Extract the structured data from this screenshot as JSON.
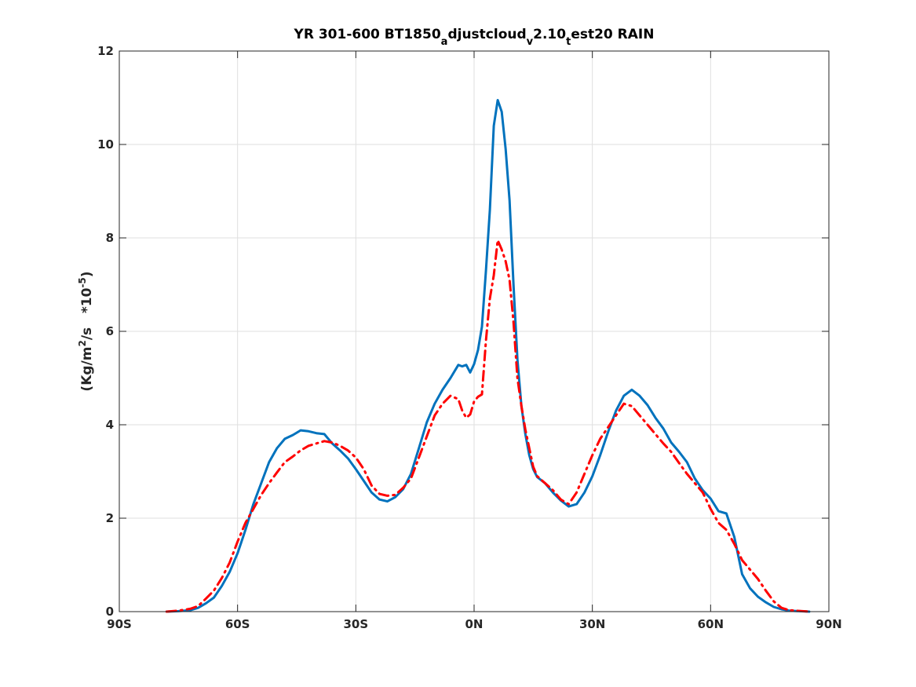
{
  "chart_data": {
    "type": "line",
    "title": {
      "parts": [
        {
          "text": "YR 301-600 BT1850",
          "sub": false
        },
        {
          "text": "a",
          "sub": true
        },
        {
          "text": "djustcloud",
          "sub": false
        },
        {
          "text": "v",
          "sub": true
        },
        {
          "text": "2.10",
          "sub": false
        },
        {
          "text": "t",
          "sub": true
        },
        {
          "text": "est20 RAIN",
          "sub": false
        }
      ]
    },
    "ylabel": {
      "pre": "(Kg/m",
      "sup1": "2",
      "mid": "/s   *10",
      "sup2": "-5",
      "post": ")"
    },
    "xlim": [
      -90,
      90
    ],
    "ylim": [
      0,
      12
    ],
    "xticks": [
      -90,
      -60,
      -30,
      0,
      30,
      60,
      90
    ],
    "xtick_labels": [
      "90S",
      "60S",
      "30S",
      "0N",
      "30N",
      "60N",
      "90N"
    ],
    "yticks": [
      0,
      2,
      4,
      6,
      8,
      10,
      12
    ],
    "ytick_labels": [
      "0",
      "2",
      "4",
      "6",
      "8",
      "10",
      "12"
    ],
    "grid": true,
    "legend": "none",
    "series": [
      {
        "color": "#0072BD",
        "style": "solid",
        "points": [
          [
            -78,
            0.0
          ],
          [
            -75,
            0.01
          ],
          [
            -72,
            0.03
          ],
          [
            -70,
            0.08
          ],
          [
            -68,
            0.18
          ],
          [
            -66,
            0.3
          ],
          [
            -64,
            0.55
          ],
          [
            -62,
            0.85
          ],
          [
            -60,
            1.25
          ],
          [
            -58,
            1.75
          ],
          [
            -56,
            2.3
          ],
          [
            -54,
            2.75
          ],
          [
            -52,
            3.2
          ],
          [
            -50,
            3.5
          ],
          [
            -48,
            3.7
          ],
          [
            -46,
            3.78
          ],
          [
            -44,
            3.88
          ],
          [
            -42,
            3.86
          ],
          [
            -40,
            3.82
          ],
          [
            -38,
            3.8
          ],
          [
            -36,
            3.6
          ],
          [
            -34,
            3.45
          ],
          [
            -32,
            3.28
          ],
          [
            -30,
            3.05
          ],
          [
            -28,
            2.8
          ],
          [
            -26,
            2.55
          ],
          [
            -24,
            2.4
          ],
          [
            -22,
            2.36
          ],
          [
            -20,
            2.45
          ],
          [
            -18,
            2.62
          ],
          [
            -16,
            2.95
          ],
          [
            -14,
            3.5
          ],
          [
            -12,
            4.05
          ],
          [
            -10,
            4.45
          ],
          [
            -8,
            4.75
          ],
          [
            -6,
            5.0
          ],
          [
            -4,
            5.28
          ],
          [
            -3,
            5.25
          ],
          [
            -2,
            5.28
          ],
          [
            -1,
            5.12
          ],
          [
            0,
            5.3
          ],
          [
            1,
            5.6
          ],
          [
            2,
            6.1
          ],
          [
            3,
            7.3
          ],
          [
            4,
            8.6
          ],
          [
            5,
            10.4
          ],
          [
            6,
            10.95
          ],
          [
            7,
            10.7
          ],
          [
            8,
            9.9
          ],
          [
            9,
            8.8
          ],
          [
            10,
            7.0
          ],
          [
            11,
            5.4
          ],
          [
            12,
            4.4
          ],
          [
            13,
            3.8
          ],
          [
            14,
            3.35
          ],
          [
            15,
            3.05
          ],
          [
            16,
            2.88
          ],
          [
            18,
            2.75
          ],
          [
            20,
            2.55
          ],
          [
            22,
            2.38
          ],
          [
            24,
            2.25
          ],
          [
            26,
            2.3
          ],
          [
            28,
            2.55
          ],
          [
            30,
            2.9
          ],
          [
            32,
            3.35
          ],
          [
            34,
            3.85
          ],
          [
            36,
            4.3
          ],
          [
            38,
            4.62
          ],
          [
            40,
            4.75
          ],
          [
            42,
            4.62
          ],
          [
            44,
            4.42
          ],
          [
            46,
            4.15
          ],
          [
            48,
            3.92
          ],
          [
            50,
            3.62
          ],
          [
            52,
            3.42
          ],
          [
            54,
            3.2
          ],
          [
            56,
            2.85
          ],
          [
            58,
            2.6
          ],
          [
            60,
            2.42
          ],
          [
            62,
            2.15
          ],
          [
            64,
            2.1
          ],
          [
            66,
            1.6
          ],
          [
            68,
            0.8
          ],
          [
            70,
            0.5
          ],
          [
            72,
            0.32
          ],
          [
            74,
            0.2
          ],
          [
            76,
            0.1
          ],
          [
            78,
            0.05
          ],
          [
            80,
            0.02
          ],
          [
            85,
            0.0
          ]
        ]
      },
      {
        "color": "#FF0000",
        "style": "dashdot",
        "points": [
          [
            -78,
            0.0
          ],
          [
            -75,
            0.02
          ],
          [
            -72,
            0.06
          ],
          [
            -70,
            0.12
          ],
          [
            -68,
            0.28
          ],
          [
            -66,
            0.45
          ],
          [
            -64,
            0.72
          ],
          [
            -62,
            1.05
          ],
          [
            -60,
            1.5
          ],
          [
            -58,
            1.9
          ],
          [
            -56,
            2.2
          ],
          [
            -54,
            2.5
          ],
          [
            -52,
            2.75
          ],
          [
            -50,
            2.98
          ],
          [
            -48,
            3.2
          ],
          [
            -46,
            3.32
          ],
          [
            -44,
            3.45
          ],
          [
            -42,
            3.55
          ],
          [
            -40,
            3.6
          ],
          [
            -38,
            3.65
          ],
          [
            -36,
            3.62
          ],
          [
            -34,
            3.55
          ],
          [
            -32,
            3.45
          ],
          [
            -30,
            3.3
          ],
          [
            -28,
            3.05
          ],
          [
            -26,
            2.7
          ],
          [
            -24,
            2.52
          ],
          [
            -22,
            2.48
          ],
          [
            -20,
            2.5
          ],
          [
            -18,
            2.65
          ],
          [
            -16,
            2.85
          ],
          [
            -14,
            3.3
          ],
          [
            -12,
            3.75
          ],
          [
            -10,
            4.2
          ],
          [
            -8,
            4.45
          ],
          [
            -6,
            4.62
          ],
          [
            -4,
            4.55
          ],
          [
            -3,
            4.3
          ],
          [
            -2,
            4.15
          ],
          [
            -1,
            4.22
          ],
          [
            0,
            4.5
          ],
          [
            1,
            4.6
          ],
          [
            2,
            4.65
          ],
          [
            3,
            5.8
          ],
          [
            4,
            6.7
          ],
          [
            5,
            7.2
          ],
          [
            6,
            7.95
          ],
          [
            7,
            7.75
          ],
          [
            8,
            7.5
          ],
          [
            9,
            7.1
          ],
          [
            10,
            6.2
          ],
          [
            11,
            5.0
          ],
          [
            12,
            4.4
          ],
          [
            13,
            3.9
          ],
          [
            14,
            3.5
          ],
          [
            15,
            3.1
          ],
          [
            16,
            2.9
          ],
          [
            18,
            2.75
          ],
          [
            20,
            2.6
          ],
          [
            22,
            2.4
          ],
          [
            24,
            2.3
          ],
          [
            26,
            2.55
          ],
          [
            28,
            2.95
          ],
          [
            30,
            3.35
          ],
          [
            32,
            3.7
          ],
          [
            34,
            3.95
          ],
          [
            36,
            4.2
          ],
          [
            38,
            4.45
          ],
          [
            40,
            4.4
          ],
          [
            42,
            4.2
          ],
          [
            44,
            4.0
          ],
          [
            46,
            3.8
          ],
          [
            48,
            3.6
          ],
          [
            50,
            3.42
          ],
          [
            52,
            3.18
          ],
          [
            54,
            2.95
          ],
          [
            56,
            2.75
          ],
          [
            58,
            2.55
          ],
          [
            60,
            2.2
          ],
          [
            62,
            1.9
          ],
          [
            64,
            1.75
          ],
          [
            66,
            1.45
          ],
          [
            68,
            1.1
          ],
          [
            70,
            0.9
          ],
          [
            72,
            0.7
          ],
          [
            74,
            0.45
          ],
          [
            76,
            0.22
          ],
          [
            78,
            0.08
          ],
          [
            80,
            0.03
          ],
          [
            85,
            0.0
          ]
        ]
      }
    ]
  }
}
